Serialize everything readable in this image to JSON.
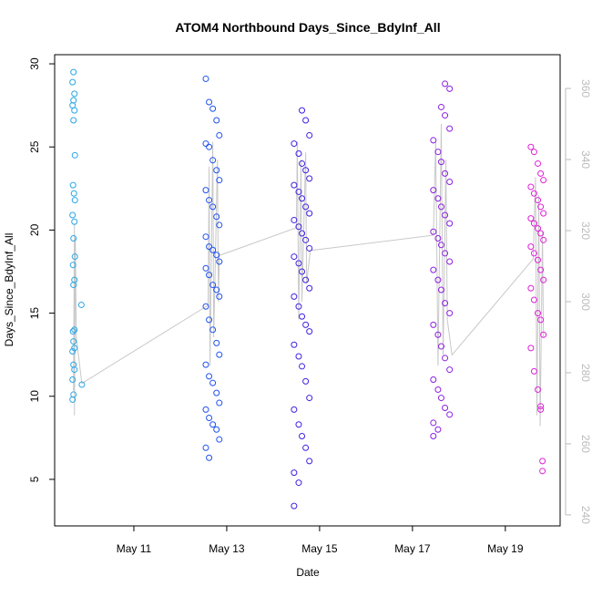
{
  "chart_data": {
    "type": "scatter",
    "title": "ATOM4 Northbound Days_Since_BdyInf_All",
    "xlabel": "Date",
    "ylabel": "Days_Since_BdyInf_All",
    "xlim": [
      9.294,
      20.18
    ],
    "xticks": [
      {
        "value": 11,
        "label": "May 11"
      },
      {
        "value": 13,
        "label": "May 13"
      },
      {
        "value": 15,
        "label": "May 15"
      },
      {
        "value": 17,
        "label": "May 17"
      },
      {
        "value": 19,
        "label": "May 19"
      }
    ],
    "ylim": [
      2.2,
      30.55
    ],
    "yticks": [
      5,
      10,
      15,
      20,
      25,
      30
    ],
    "y2lim": [
      236.9,
      369.5
    ],
    "y2ticks": [
      240,
      260,
      280,
      300,
      320,
      340,
      360
    ],
    "series": [
      {
        "type": "line",
        "axis": "y2",
        "color": "#c8c8c8",
        "x": [
          9.7,
          9.72,
          9.72,
          9.74,
          9.76,
          9.88,
          12.6,
          12.62,
          12.64,
          12.7,
          12.72,
          12.8,
          12.82,
          12.84,
          14.5,
          14.52,
          14.55,
          14.6,
          14.62,
          14.7,
          14.72,
          14.8,
          17.45,
          17.5,
          17.55,
          17.62,
          17.66,
          17.72,
          17.75,
          17.85,
          19.6,
          19.65,
          19.68,
          19.72,
          19.75,
          19.8,
          19.82
        ],
        "values": [
          275,
          322,
          268,
          318,
          290,
          277,
          299,
          338,
          282,
          345,
          290,
          340,
          300,
          313,
          320.8,
          345,
          295,
          340,
          300,
          342,
          305,
          314.4,
          318.7,
          345,
          282,
          350,
          285,
          340,
          295,
          285,
          312,
          335,
          268,
          330,
          265,
          320,
          290
        ]
      },
      {
        "color": "#2aa6e6",
        "x": [
          9.7,
          9.68,
          9.72,
          9.7,
          9.68,
          9.72,
          9.7,
          9.73,
          9.69,
          9.71,
          9.73,
          9.68,
          9.72,
          9.7,
          9.73,
          9.69,
          9.72,
          9.7,
          9.87,
          9.72,
          9.69,
          9.7,
          9.72,
          9.68,
          9.7,
          9.72,
          9.68,
          9.88,
          9.7,
          9.68
        ],
        "values": [
          29.5,
          28.9,
          28.2,
          27.8,
          27.5,
          27.2,
          26.6,
          24.5,
          22.7,
          22.2,
          21.8,
          20.9,
          20.5,
          19.5,
          18.4,
          17.9,
          17.0,
          16.7,
          15.5,
          14.0,
          13.9,
          13.3,
          12.9,
          12.7,
          11.9,
          11.6,
          11.0,
          10.7,
          10.1,
          9.8
        ]
      },
      {
        "color": "#1f52ee",
        "x": [
          12.55,
          12.62,
          12.7,
          12.78,
          12.84,
          12.55,
          12.62,
          12.7,
          12.78,
          12.84,
          12.55,
          12.62,
          12.7,
          12.78,
          12.84,
          12.55,
          12.62,
          12.7,
          12.78,
          12.84,
          12.55,
          12.62,
          12.7,
          12.78,
          12.84,
          12.55,
          12.62,
          12.7,
          12.78,
          12.84,
          12.55,
          12.62,
          12.7,
          12.78,
          12.84,
          12.55,
          12.62,
          12.7,
          12.78,
          12.84,
          12.55,
          12.62
        ],
        "values": [
          29.1,
          27.7,
          27.3,
          26.6,
          25.7,
          25.2,
          25.0,
          24.2,
          23.6,
          23.0,
          22.4,
          21.8,
          21.4,
          20.8,
          20.3,
          19.6,
          19.0,
          18.8,
          18.5,
          18.1,
          17.7,
          17.3,
          16.7,
          16.4,
          16.0,
          15.4,
          14.6,
          14.0,
          13.2,
          12.5,
          11.9,
          11.2,
          10.8,
          10.2,
          9.6,
          9.2,
          8.7,
          8.3,
          8.0,
          7.4,
          6.9,
          6.3
        ]
      },
      {
        "color": "#3e22e0",
        "x": [
          14.62,
          14.7,
          14.78,
          14.45,
          14.55,
          14.62,
          14.7,
          14.78,
          14.45,
          14.55,
          14.62,
          14.7,
          14.78,
          14.45,
          14.55,
          14.62,
          14.7,
          14.78,
          14.45,
          14.55,
          14.62,
          14.7,
          14.78,
          14.45,
          14.55,
          14.62,
          14.7,
          14.78,
          14.45,
          14.55,
          14.62,
          14.7,
          14.78,
          14.45,
          14.55,
          14.62,
          14.7,
          14.78,
          14.45,
          14.55,
          14.45
        ],
        "values": [
          27.2,
          26.6,
          25.7,
          25.2,
          24.6,
          24.0,
          23.6,
          23.1,
          22.7,
          22.3,
          21.9,
          21.4,
          21.0,
          20.6,
          20.2,
          19.8,
          19.4,
          18.9,
          18.4,
          18.0,
          17.5,
          17.0,
          16.5,
          16.0,
          15.4,
          14.8,
          14.3,
          13.9,
          13.1,
          12.4,
          11.8,
          10.9,
          9.9,
          9.2,
          8.3,
          7.6,
          6.9,
          6.1,
          5.4,
          4.8,
          3.4
        ]
      },
      {
        "color": "#8a1fe0",
        "x": [
          17.7,
          17.8,
          17.62,
          17.7,
          17.8,
          17.45,
          17.55,
          17.62,
          17.7,
          17.8,
          17.45,
          17.55,
          17.62,
          17.7,
          17.8,
          17.45,
          17.55,
          17.62,
          17.7,
          17.8,
          17.45,
          17.55,
          17.62,
          17.7,
          17.8,
          17.45,
          17.55,
          17.62,
          17.7,
          17.8,
          17.45,
          17.55,
          17.62,
          17.7,
          17.8,
          17.45,
          17.55,
          17.45
        ],
        "values": [
          28.8,
          28.5,
          27.4,
          26.9,
          26.1,
          25.4,
          24.7,
          24.1,
          23.4,
          22.9,
          22.4,
          21.9,
          21.4,
          20.9,
          20.4,
          19.9,
          19.5,
          19.1,
          18.6,
          18.1,
          17.6,
          17.0,
          16.4,
          15.6,
          15.0,
          14.3,
          13.7,
          13.0,
          12.3,
          11.6,
          11.0,
          10.4,
          9.9,
          9.3,
          8.9,
          8.4,
          8.0,
          7.6
        ]
      },
      {
        "color": "#e020d8",
        "x": [
          19.55,
          19.62,
          19.7,
          19.76,
          19.82,
          19.55,
          19.62,
          19.7,
          19.76,
          19.82,
          19.55,
          19.62,
          19.7,
          19.76,
          19.82,
          19.55,
          19.62,
          19.7,
          19.76,
          19.82,
          19.55,
          19.62,
          19.7,
          19.76,
          19.82,
          19.55,
          19.62,
          19.7,
          19.76,
          19.76,
          19.8,
          19.8
        ],
        "values": [
          25.0,
          24.7,
          24.0,
          23.4,
          23.0,
          22.6,
          22.2,
          21.8,
          21.4,
          21.0,
          20.7,
          20.4,
          20.1,
          19.8,
          19.4,
          19.0,
          18.6,
          18.2,
          17.6,
          17.0,
          16.5,
          15.8,
          15.0,
          14.6,
          13.7,
          12.9,
          11.5,
          10.4,
          9.4,
          9.2,
          6.1,
          5.5
        ]
      }
    ]
  }
}
